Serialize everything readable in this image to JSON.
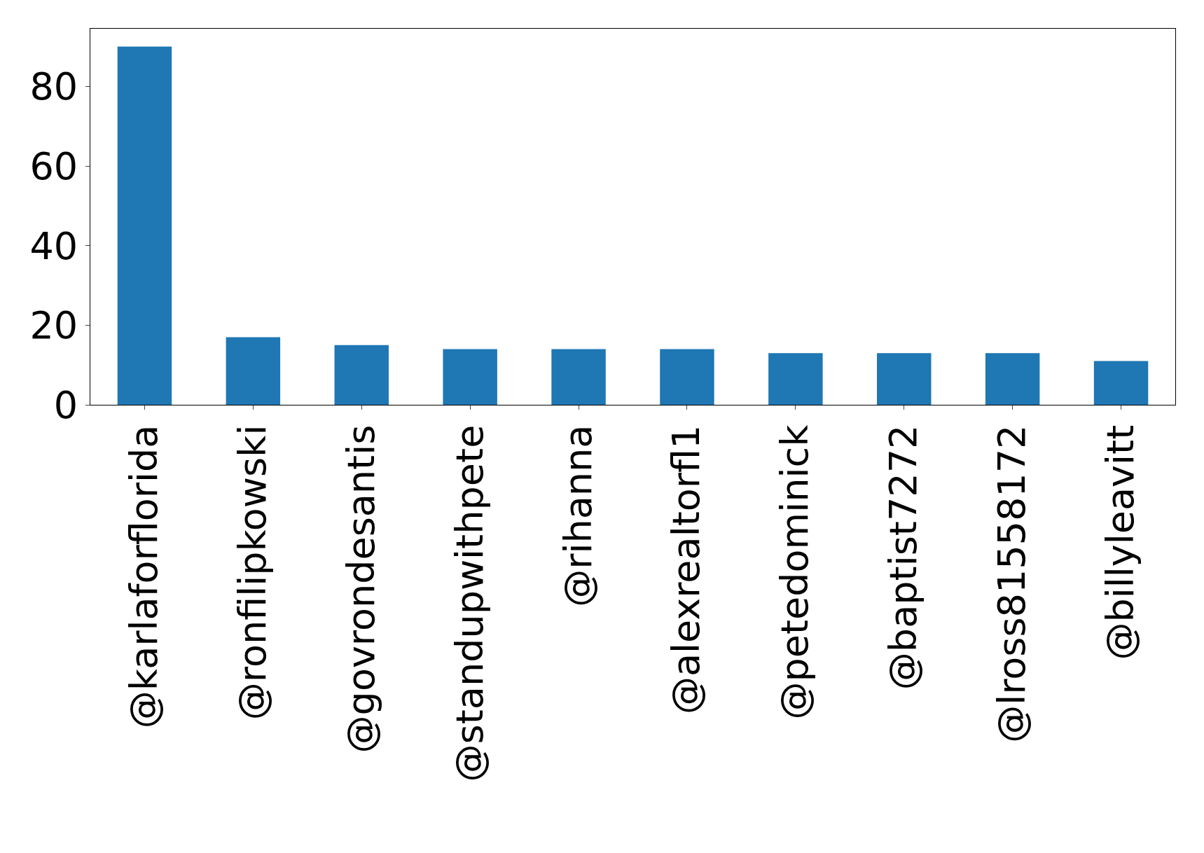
{
  "chart_data": {
    "type": "bar",
    "categories": [
      "@karlaforflorida",
      "@ronfilipkowski",
      "@govrondesantis",
      "@standupwithpete",
      "@rihanna",
      "@alexrealtorfl1",
      "@petedominick",
      "@baptist7272",
      "@lross81558172",
      "@billyleavitt"
    ],
    "values": [
      90,
      17,
      15,
      14,
      14,
      14,
      13,
      13,
      13,
      11
    ],
    "color": "#1f77b4",
    "ylim": [
      0,
      94.5
    ],
    "yticks": [
      0,
      20,
      40,
      60,
      80
    ],
    "grid": false
  }
}
